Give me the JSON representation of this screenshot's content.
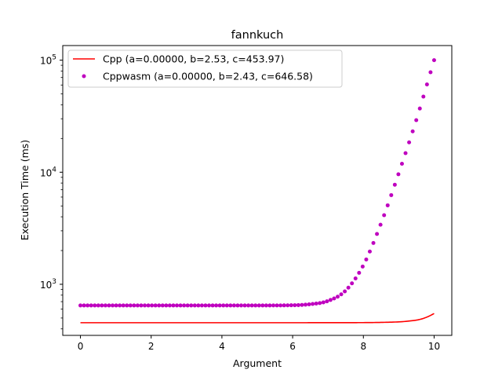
{
  "chart_data": {
    "type": "line",
    "title": "fannkuch",
    "xlabel": "Argument",
    "ylabel": "Execution Time (ms)",
    "xlim": [
      -0.5,
      10.5
    ],
    "ylim": [
      350,
      135000
    ],
    "yscale": "log",
    "x_ticks": [
      0,
      2,
      4,
      6,
      8,
      10
    ],
    "y_ticks": [
      {
        "value": 1000,
        "base": "10",
        "exp": "3"
      },
      {
        "value": 10000,
        "base": "10",
        "exp": "4"
      },
      {
        "value": 100000,
        "base": "10",
        "exp": "5"
      }
    ],
    "grid": false,
    "legend_position": "upper-left",
    "series": [
      {
        "name": "Cpp (a=0.00000, b=2.53, c=453.97)",
        "style": "line",
        "color": "#ff0000",
        "x": [
          0,
          5,
          8,
          8.5,
          9,
          9.3,
          9.6,
          9.8,
          10
        ],
        "values": [
          454,
          454,
          455,
          457,
          462,
          470,
          486,
          510,
          548
        ]
      },
      {
        "name": "Cppwasm (a=0.00000, b=2.43, c=646.58)",
        "style": "markers",
        "color": "#bf00bf",
        "x": [
          0,
          1,
          2,
          3,
          4,
          5,
          6,
          6.5,
          7,
          7.5,
          8,
          8.5,
          9,
          9.5,
          10
        ],
        "values": [
          647,
          647,
          647,
          647,
          647,
          647,
          650,
          664,
          710,
          880,
          1480,
          3500,
          9800,
          29500,
          100000
        ]
      }
    ]
  }
}
